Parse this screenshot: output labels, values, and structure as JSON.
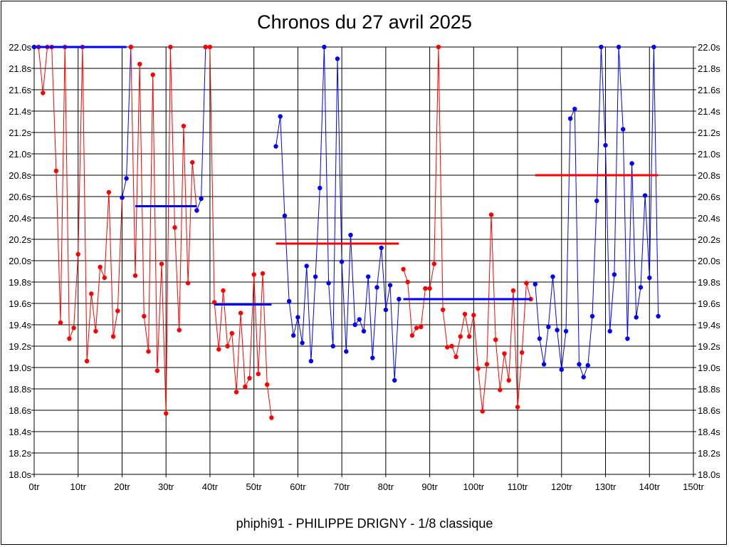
{
  "chart_data": {
    "type": "line",
    "title": "Chronos du 27 avril 2025",
    "subtitle": "phiphi91 - PHILIPPE DRIGNY - 1/8 classique",
    "xlabel": "",
    "ylabel": "",
    "xlim": [
      0,
      150
    ],
    "ylim": [
      18.0,
      22.0
    ],
    "x_ticks": [
      0,
      10,
      20,
      30,
      40,
      50,
      60,
      70,
      80,
      90,
      100,
      110,
      120,
      130,
      140,
      150
    ],
    "x_tick_labels": [
      "0tr",
      "10tr",
      "20tr",
      "30tr",
      "40tr",
      "50tr",
      "60tr",
      "70tr",
      "80tr",
      "90tr",
      "100tr",
      "110tr",
      "120tr",
      "130tr",
      "140tr",
      "150tr"
    ],
    "y_ticks": [
      18.0,
      18.2,
      18.4,
      18.6,
      18.8,
      19.0,
      19.2,
      19.4,
      19.6,
      19.8,
      20.0,
      20.2,
      20.4,
      20.6,
      20.8,
      21.0,
      21.2,
      21.4,
      21.6,
      21.8,
      22.0
    ],
    "y_tick_labels": [
      "18.0s",
      "18.2s",
      "18.4s",
      "18.6s",
      "18.8s",
      "19.0s",
      "19.2s",
      "19.4s",
      "19.6s",
      "19.8s",
      "20.0s",
      "20.2s",
      "20.4s",
      "20.6s",
      "20.8s",
      "21.0s",
      "21.2s",
      "21.4s",
      "21.6s",
      "21.8s",
      "22.0s"
    ],
    "grid": true,
    "series": [
      {
        "color": "#0000ff",
        "x": [
          0,
          1
        ],
        "values": [
          22.0,
          22.0
        ]
      },
      {
        "color": "#ff0000",
        "x": [
          1,
          2,
          3,
          4,
          5,
          6,
          7,
          8,
          9,
          10,
          11,
          12,
          13,
          14,
          15,
          16,
          17,
          18,
          19,
          20
        ],
        "values": [
          22.0,
          21.57,
          22.0,
          22.0,
          20.84,
          19.42,
          22.0,
          19.27,
          19.37,
          20.06,
          22.0,
          19.06,
          19.69,
          19.34,
          19.94,
          19.84,
          20.64,
          19.29,
          19.53,
          20.59
        ]
      },
      {
        "color": "#0000ff",
        "x": [
          20,
          21,
          22
        ],
        "values": [
          20.59,
          20.77,
          22.0
        ]
      },
      {
        "color": "#ff0000",
        "x": [
          22,
          23,
          24,
          25,
          26,
          27,
          28,
          29,
          30,
          31,
          32,
          33,
          34,
          35,
          36,
          37
        ],
        "values": [
          22.0,
          19.86,
          21.84,
          19.48,
          19.15,
          21.74,
          18.97,
          19.97,
          18.57,
          22.0,
          20.31,
          19.35,
          21.26,
          19.79,
          20.92,
          20.47
        ]
      },
      {
        "color": "#0000ff",
        "x": [
          37,
          38,
          39
        ],
        "values": [
          20.47,
          20.58,
          22.0
        ]
      },
      {
        "color": "#ff0000",
        "x": [
          39,
          40,
          41,
          42,
          43,
          44,
          45,
          46,
          47,
          48,
          49,
          50,
          51,
          52,
          53,
          54
        ],
        "values": [
          22.0,
          22.0,
          19.61,
          19.17,
          19.72,
          19.2,
          19.32,
          18.77,
          19.51,
          18.82,
          18.9,
          19.87,
          18.94,
          19.88,
          18.84,
          18.53
        ]
      },
      {
        "color": "#0000ff",
        "x": [
          55,
          56,
          57,
          58,
          59,
          60,
          61,
          62,
          63,
          64,
          65,
          66,
          67,
          68,
          69,
          70,
          71,
          72,
          73,
          74,
          75,
          76,
          77,
          78,
          79,
          80,
          81,
          82,
          83
        ],
        "values": [
          21.07,
          21.35,
          20.42,
          19.62,
          19.3,
          19.47,
          19.23,
          19.95,
          19.06,
          19.85,
          20.68,
          22.0,
          19.79,
          19.2,
          21.89,
          19.99,
          19.15,
          20.24,
          19.4,
          19.45,
          19.34,
          19.85,
          19.09,
          19.75,
          20.12,
          19.54,
          19.77,
          18.88,
          19.64
        ]
      },
      {
        "color": "#ff0000",
        "x": [
          84,
          85,
          86,
          87,
          88,
          89,
          90,
          91,
          92,
          93,
          94,
          95,
          96,
          97,
          98,
          99,
          100,
          101,
          102,
          103,
          104,
          105,
          106,
          107,
          108,
          109,
          110,
          111,
          112,
          113
        ],
        "values": [
          19.92,
          19.8,
          19.3,
          19.37,
          19.38,
          19.74,
          19.74,
          19.97,
          22.0,
          19.54,
          19.19,
          19.2,
          19.1,
          19.29,
          19.5,
          19.29,
          19.49,
          18.99,
          18.59,
          19.03,
          20.43,
          19.26,
          18.79,
          19.13,
          18.88,
          19.72,
          18.63,
          19.14,
          19.79,
          19.64
        ]
      },
      {
        "color": "#0000ff",
        "x": [
          114,
          115,
          116,
          117,
          118,
          119,
          120,
          121,
          122,
          123,
          124,
          125,
          126,
          127,
          128,
          129,
          130,
          131,
          132,
          133,
          134,
          135,
          136,
          137,
          138,
          139,
          140,
          141,
          142
        ],
        "values": [
          19.78,
          19.27,
          19.03,
          19.38,
          19.85,
          19.35,
          18.98,
          19.34,
          21.33,
          21.42,
          19.03,
          18.91,
          19.02,
          19.48,
          20.56,
          22.0,
          21.08,
          19.34,
          19.87,
          22.0,
          21.23,
          19.27,
          20.91,
          19.47,
          19.75,
          20.61,
          19.84,
          22.0,
          19.48
        ]
      }
    ],
    "averages": [
      {
        "color": "#0000ff",
        "x_start": 0,
        "x_end": 21,
        "value": 22.0
      },
      {
        "color": "#0000ff",
        "x_start": 23,
        "x_end": 37,
        "value": 20.51
      },
      {
        "color": "#0000ff",
        "x_start": 41,
        "x_end": 54,
        "value": 19.59
      },
      {
        "color": "#ff0000",
        "x_start": 55,
        "x_end": 83,
        "value": 20.16
      },
      {
        "color": "#0000ff",
        "x_start": 84,
        "x_end": 113,
        "value": 19.64
      },
      {
        "color": "#ff0000",
        "x_start": 114,
        "x_end": 142,
        "value": 20.8
      }
    ]
  }
}
